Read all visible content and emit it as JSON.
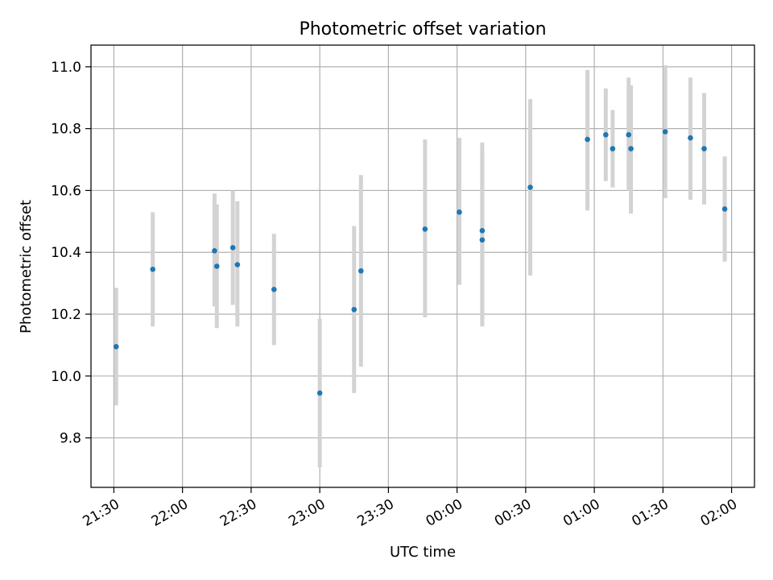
{
  "chart_data": {
    "type": "scatter",
    "title": "Photometric offset variation",
    "xlabel": "UTC time",
    "ylabel": "Photometric offset",
    "xlim": [
      "2023-01-01T21:20",
      "2023-01-02T02:10"
    ],
    "ylim": [
      9.64,
      11.07
    ],
    "x_ticks": [
      {
        "t": "2023-01-01T21:30",
        "label": "21:30"
      },
      {
        "t": "2023-01-01T22:00",
        "label": "22:00"
      },
      {
        "t": "2023-01-01T22:30",
        "label": "22:30"
      },
      {
        "t": "2023-01-01T23:00",
        "label": "23:00"
      },
      {
        "t": "2023-01-01T23:30",
        "label": "23:30"
      },
      {
        "t": "2023-01-02T00:00",
        "label": "00:00"
      },
      {
        "t": "2023-01-02T00:30",
        "label": "00:30"
      },
      {
        "t": "2023-01-02T01:00",
        "label": "01:00"
      },
      {
        "t": "2023-01-02T01:30",
        "label": "01:30"
      },
      {
        "t": "2023-01-02T02:00",
        "label": "02:00"
      }
    ],
    "y_ticks": [
      {
        "v": 9.8,
        "label": "9.8"
      },
      {
        "v": 10.0,
        "label": "10.0"
      },
      {
        "v": 10.2,
        "label": "10.2"
      },
      {
        "v": 10.4,
        "label": "10.4"
      },
      {
        "v": 10.6,
        "label": "10.6"
      },
      {
        "v": 10.8,
        "label": "10.8"
      },
      {
        "v": 11.0,
        "label": "11.0"
      }
    ],
    "grid": true,
    "point_color": "#1f77b4",
    "errorbar_color": "#d3d3d3",
    "points": [
      {
        "t": "2023-01-01T21:31",
        "y": 10.095,
        "ylo": 9.905,
        "yhi": 10.285
      },
      {
        "t": "2023-01-01T21:47",
        "y": 10.345,
        "ylo": 10.16,
        "yhi": 10.53
      },
      {
        "t": "2023-01-01T22:14",
        "y": 10.405,
        "ylo": 10.225,
        "yhi": 10.59
      },
      {
        "t": "2023-01-01T22:15",
        "y": 10.355,
        "ylo": 10.155,
        "yhi": 10.555
      },
      {
        "t": "2023-01-01T22:22",
        "y": 10.415,
        "ylo": 10.23,
        "yhi": 10.6
      },
      {
        "t": "2023-01-01T22:24",
        "y": 10.36,
        "ylo": 10.16,
        "yhi": 10.565
      },
      {
        "t": "2023-01-01T22:40",
        "y": 10.28,
        "ylo": 10.1,
        "yhi": 10.46
      },
      {
        "t": "2023-01-01T23:00",
        "y": 9.945,
        "ylo": 9.705,
        "yhi": 10.185
      },
      {
        "t": "2023-01-01T23:15",
        "y": 10.215,
        "ylo": 9.945,
        "yhi": 10.485
      },
      {
        "t": "2023-01-01T23:18",
        "y": 10.34,
        "ylo": 10.03,
        "yhi": 10.65
      },
      {
        "t": "2023-01-01T23:46",
        "y": 10.475,
        "ylo": 10.19,
        "yhi": 10.765
      },
      {
        "t": "2023-01-02T00:01",
        "y": 10.53,
        "ylo": 10.295,
        "yhi": 10.77
      },
      {
        "t": "2023-01-02T00:11",
        "y": 10.44,
        "ylo": 10.16,
        "yhi": 10.72
      },
      {
        "t": "2023-01-02T00:11",
        "y": 10.47,
        "ylo": 10.185,
        "yhi": 10.755
      },
      {
        "t": "2023-01-02T00:32",
        "y": 10.61,
        "ylo": 10.325,
        "yhi": 10.895
      },
      {
        "t": "2023-01-02T00:57",
        "y": 10.765,
        "ylo": 10.535,
        "yhi": 10.99
      },
      {
        "t": "2023-01-02T01:05",
        "y": 10.78,
        "ylo": 10.63,
        "yhi": 10.93
      },
      {
        "t": "2023-01-02T01:08",
        "y": 10.735,
        "ylo": 10.61,
        "yhi": 10.86
      },
      {
        "t": "2023-01-02T01:15",
        "y": 10.78,
        "ylo": 10.6,
        "yhi": 10.965
      },
      {
        "t": "2023-01-02T01:16",
        "y": 10.735,
        "ylo": 10.525,
        "yhi": 10.94
      },
      {
        "t": "2023-01-02T01:31",
        "y": 10.79,
        "ylo": 10.575,
        "yhi": 11.005
      },
      {
        "t": "2023-01-02T01:42",
        "y": 10.77,
        "ylo": 10.57,
        "yhi": 10.965
      },
      {
        "t": "2023-01-02T01:48",
        "y": 10.735,
        "ylo": 10.555,
        "yhi": 10.915
      },
      {
        "t": "2023-01-02T01:57",
        "y": 10.54,
        "ylo": 10.37,
        "yhi": 10.71
      }
    ]
  }
}
